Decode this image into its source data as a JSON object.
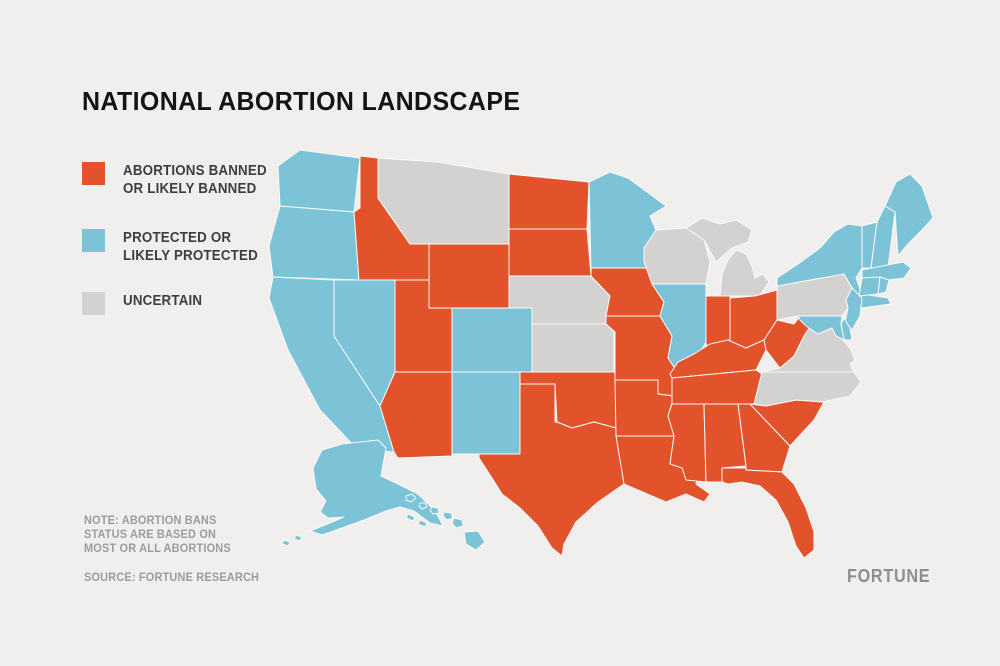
{
  "background_color": "#F0EFED",
  "title": "NATIONAL ABORTION LANDSCAPE",
  "legend": {
    "items": [
      {
        "category": "banned",
        "color": "#E2522B",
        "label1": "ABORTIONS BANNED",
        "label2": "OR LIKELY BANNED"
      },
      {
        "category": "protected",
        "color": "#7DC3D8",
        "label1": "PROTECTED OR",
        "label2": "LIKELY PROTECTED"
      },
      {
        "category": "uncertain",
        "color": "#D3D2D0",
        "label1": "UNCERTAIN",
        "label2": ""
      }
    ]
  },
  "note_lines": [
    "NOTE: ABORTION BANS",
    "STATUS ARE BASED ON",
    "MOST OR ALL ABORTIONS"
  ],
  "source": "SOURCE: FORTUNE RESEARCH",
  "brand": "FORTUNE",
  "chart_data": {
    "type": "choropleth-map",
    "region": "United States",
    "legend_position": "left",
    "categories": {
      "banned": {
        "label": "ABORTIONS BANNED OR LIKELY BANNED",
        "color": "#E2522B"
      },
      "protected": {
        "label": "PROTECTED OR LIKELY PROTECTED",
        "color": "#7DC3D8"
      },
      "uncertain": {
        "label": "UNCERTAIN",
        "color": "#D3D2D0"
      }
    },
    "border_color": "#FBFAF8",
    "states": [
      {
        "id": "WA",
        "name": "Washington",
        "category": "protected"
      },
      {
        "id": "OR",
        "name": "Oregon",
        "category": "protected"
      },
      {
        "id": "CA",
        "name": "California",
        "category": "protected"
      },
      {
        "id": "NV",
        "name": "Nevada",
        "category": "protected"
      },
      {
        "id": "ID",
        "name": "Idaho",
        "category": "banned"
      },
      {
        "id": "MT",
        "name": "Montana",
        "category": "uncertain"
      },
      {
        "id": "WY",
        "name": "Wyoming",
        "category": "banned"
      },
      {
        "id": "UT",
        "name": "Utah",
        "category": "banned"
      },
      {
        "id": "AZ",
        "name": "Arizona",
        "category": "banned"
      },
      {
        "id": "CO",
        "name": "Colorado",
        "category": "protected"
      },
      {
        "id": "NM",
        "name": "New Mexico",
        "category": "protected"
      },
      {
        "id": "ND",
        "name": "North Dakota",
        "category": "banned"
      },
      {
        "id": "SD",
        "name": "South Dakota",
        "category": "banned"
      },
      {
        "id": "NE",
        "name": "Nebraska",
        "category": "uncertain"
      },
      {
        "id": "KS",
        "name": "Kansas",
        "category": "uncertain"
      },
      {
        "id": "OK",
        "name": "Oklahoma",
        "category": "banned"
      },
      {
        "id": "TX",
        "name": "Texas",
        "category": "banned"
      },
      {
        "id": "MN",
        "name": "Minnesota",
        "category": "protected"
      },
      {
        "id": "IA",
        "name": "Iowa",
        "category": "banned"
      },
      {
        "id": "MO",
        "name": "Missouri",
        "category": "banned"
      },
      {
        "id": "AR",
        "name": "Arkansas",
        "category": "banned"
      },
      {
        "id": "LA",
        "name": "Louisiana",
        "category": "banned"
      },
      {
        "id": "WI",
        "name": "Wisconsin",
        "category": "uncertain"
      },
      {
        "id": "IL",
        "name": "Illinois",
        "category": "protected"
      },
      {
        "id": "MI",
        "name": "Michigan",
        "category": "uncertain"
      },
      {
        "id": "IN",
        "name": "Indiana",
        "category": "banned"
      },
      {
        "id": "OH",
        "name": "Ohio",
        "category": "banned"
      },
      {
        "id": "KY",
        "name": "Kentucky",
        "category": "banned"
      },
      {
        "id": "TN",
        "name": "Tennessee",
        "category": "banned"
      },
      {
        "id": "MS",
        "name": "Mississippi",
        "category": "banned"
      },
      {
        "id": "AL",
        "name": "Alabama",
        "category": "banned"
      },
      {
        "id": "GA",
        "name": "Georgia",
        "category": "banned"
      },
      {
        "id": "FL",
        "name": "Florida",
        "category": "banned"
      },
      {
        "id": "SC",
        "name": "South Carolina",
        "category": "banned"
      },
      {
        "id": "NC",
        "name": "North Carolina",
        "category": "uncertain"
      },
      {
        "id": "VA",
        "name": "Virginia",
        "category": "uncertain"
      },
      {
        "id": "WV",
        "name": "West Virginia",
        "category": "banned"
      },
      {
        "id": "PA",
        "name": "Pennsylvania",
        "category": "uncertain"
      },
      {
        "id": "NY",
        "name": "New York",
        "category": "protected"
      },
      {
        "id": "NJ",
        "name": "New Jersey",
        "category": "protected"
      },
      {
        "id": "DE",
        "name": "Delaware",
        "category": "protected"
      },
      {
        "id": "MD",
        "name": "Maryland",
        "category": "protected"
      },
      {
        "id": "VT",
        "name": "Vermont",
        "category": "protected"
      },
      {
        "id": "NH",
        "name": "New Hampshire",
        "category": "protected"
      },
      {
        "id": "ME",
        "name": "Maine",
        "category": "protected"
      },
      {
        "id": "MA",
        "name": "Massachusetts",
        "category": "protected"
      },
      {
        "id": "CT",
        "name": "Connecticut",
        "category": "protected"
      },
      {
        "id": "RI",
        "name": "Rhode Island",
        "category": "protected"
      },
      {
        "id": "AK",
        "name": "Alaska",
        "category": "protected"
      },
      {
        "id": "HI",
        "name": "Hawaii",
        "category": "protected"
      }
    ]
  }
}
